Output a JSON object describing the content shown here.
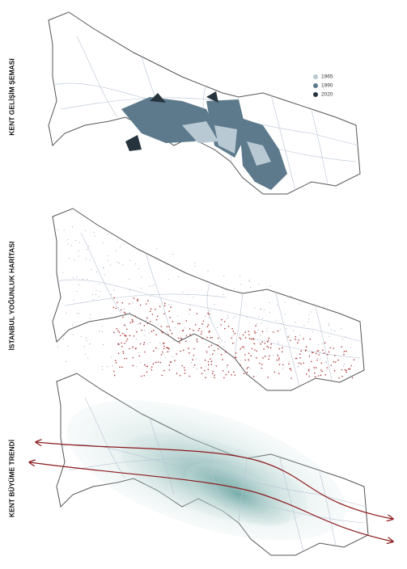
{
  "panels": [
    {
      "label": "KENT GELİŞİM ŞEMASI",
      "legend": [
        {
          "label": "1965",
          "color": "#b9c9d3"
        },
        {
          "label": "1990",
          "color": "#5d7a8c"
        },
        {
          "label": "2020",
          "color": "#26343d"
        }
      ]
    },
    {
      "label": "İSTANBUL YOĞUNLUK HARİTASI"
    },
    {
      "label": "KENT BÜYÜME TRENDİ"
    }
  ]
}
